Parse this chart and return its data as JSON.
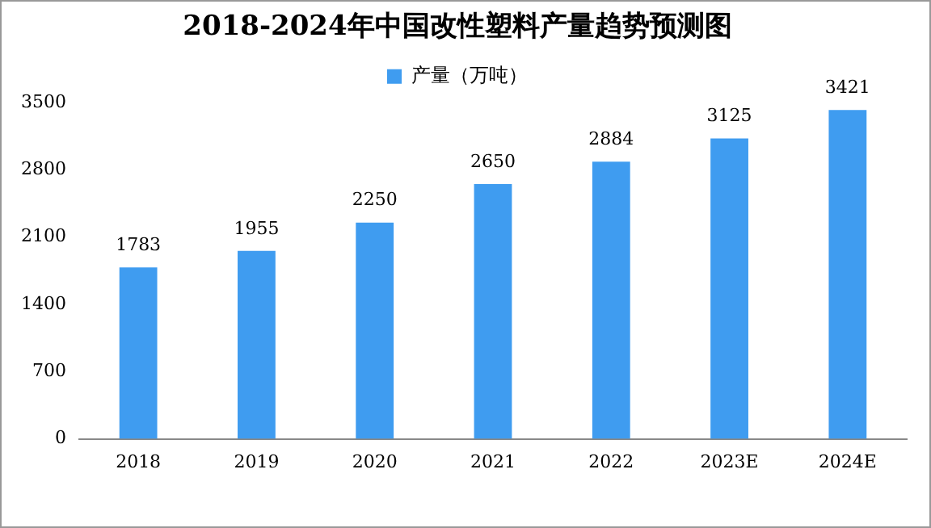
{
  "chart_data": {
    "type": "bar",
    "title": "2018-2024年中国改性塑料产量趋势预测图",
    "categories": [
      "2018",
      "2019",
      "2020",
      "2021",
      "2022",
      "2023E",
      "2024E"
    ],
    "series": [
      {
        "name": "产量（万吨）",
        "color": "#3f9cf0",
        "values": [
          1783,
          1955,
          2250,
          2650,
          2884,
          3125,
          3421
        ]
      }
    ],
    "ylim": [
      0,
      3500
    ],
    "yticks": [
      0,
      700,
      1400,
      2100,
      2800,
      3500
    ],
    "data_labels": true,
    "legend": "top",
    "grid": false
  }
}
